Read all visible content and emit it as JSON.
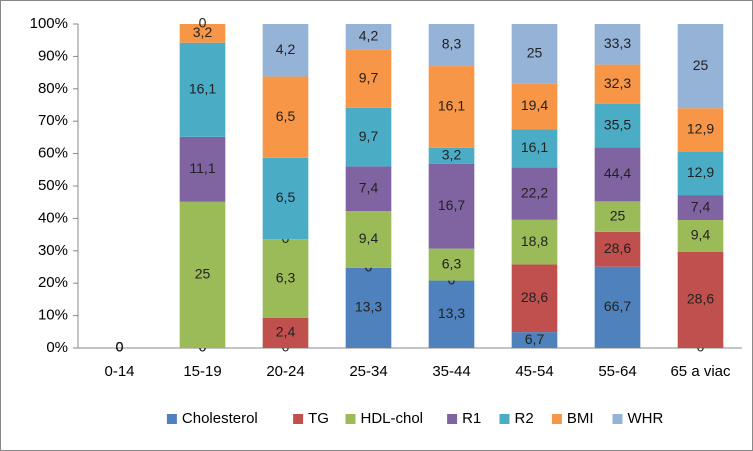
{
  "chart_data": {
    "type": "bar",
    "stacking": "percent",
    "categories": [
      "0-14",
      "15-19",
      "20-24",
      "25-34",
      "35-44",
      "45-54",
      "55-64",
      "65 a viac"
    ],
    "ylim": [
      0,
      100
    ],
    "yticks": [
      {
        "value": 0,
        "label": "0%"
      },
      {
        "value": 10,
        "label": "10%"
      },
      {
        "value": 20,
        "label": "20%"
      },
      {
        "value": 30,
        "label": "30%"
      },
      {
        "value": 40,
        "label": "40%"
      },
      {
        "value": 50,
        "label": "50%"
      },
      {
        "value": 60,
        "label": "60%"
      },
      {
        "value": 70,
        "label": "70%"
      },
      {
        "value": 80,
        "label": "80%"
      },
      {
        "value": 90,
        "label": "90%"
      },
      {
        "value": 100,
        "label": "100%"
      }
    ],
    "legend": "bottom",
    "series": [
      {
        "name": "Cholesterol",
        "color": "#4f81bd",
        "values": [
          0,
          0,
          0,
          13.3,
          13.3,
          6.7,
          66.7,
          0
        ],
        "value_labels": [
          "0",
          "0",
          "0",
          "13,3",
          "13,3",
          "6,7",
          "66,7",
          "0"
        ]
      },
      {
        "name": "TG",
        "color": "#c0504d",
        "values": [
          0,
          0,
          2.4,
          0,
          0,
          28.6,
          28.6,
          28.6
        ],
        "value_labels": [
          "0",
          "0",
          "2,4",
          "0",
          "0",
          "28,6",
          "28,6",
          "28,6"
        ]
      },
      {
        "name": "HDL-chol",
        "color": "#9bbb59",
        "values": [
          0,
          25,
          6.3,
          9.4,
          6.3,
          18.8,
          25,
          9.4
        ],
        "value_labels": [
          "0",
          "25",
          "6,3",
          "9,4",
          "6,3",
          "18,8",
          "25",
          "9,4"
        ]
      },
      {
        "name": "R1",
        "color": "#8064a2",
        "values": [
          0,
          11.1,
          0,
          7.4,
          16.7,
          22.2,
          44.4,
          7.4
        ],
        "value_labels": [
          "0",
          "11,1",
          "0",
          "7,4",
          "16,7",
          "22,2",
          "44,4",
          "7,4"
        ]
      },
      {
        "name": "R2",
        "color": "#4bacc6",
        "values": [
          0,
          16.1,
          6.5,
          9.7,
          3.2,
          16.1,
          35.5,
          12.9
        ],
        "value_labels": [
          "0",
          "16,1",
          "6,5",
          "9,7",
          "3,2",
          "16,1",
          "35,5",
          "12,9"
        ]
      },
      {
        "name": "BMI",
        "color": "#f79646",
        "values": [
          0,
          3.2,
          6.5,
          9.7,
          16.1,
          19.4,
          32.3,
          12.9
        ],
        "value_labels": [
          "0",
          "3,2",
          "6,5",
          "9,7",
          "16,1",
          "19,4",
          "32,3",
          "12,9"
        ]
      },
      {
        "name": "WHR",
        "color": "#95b3d7",
        "values": [
          0,
          0,
          4.2,
          4.2,
          8.3,
          25,
          33.3,
          25
        ],
        "value_labels": [
          "0",
          "0",
          "4,2",
          "4,2",
          "8,3",
          "25",
          "33,3",
          "25"
        ]
      }
    ]
  }
}
